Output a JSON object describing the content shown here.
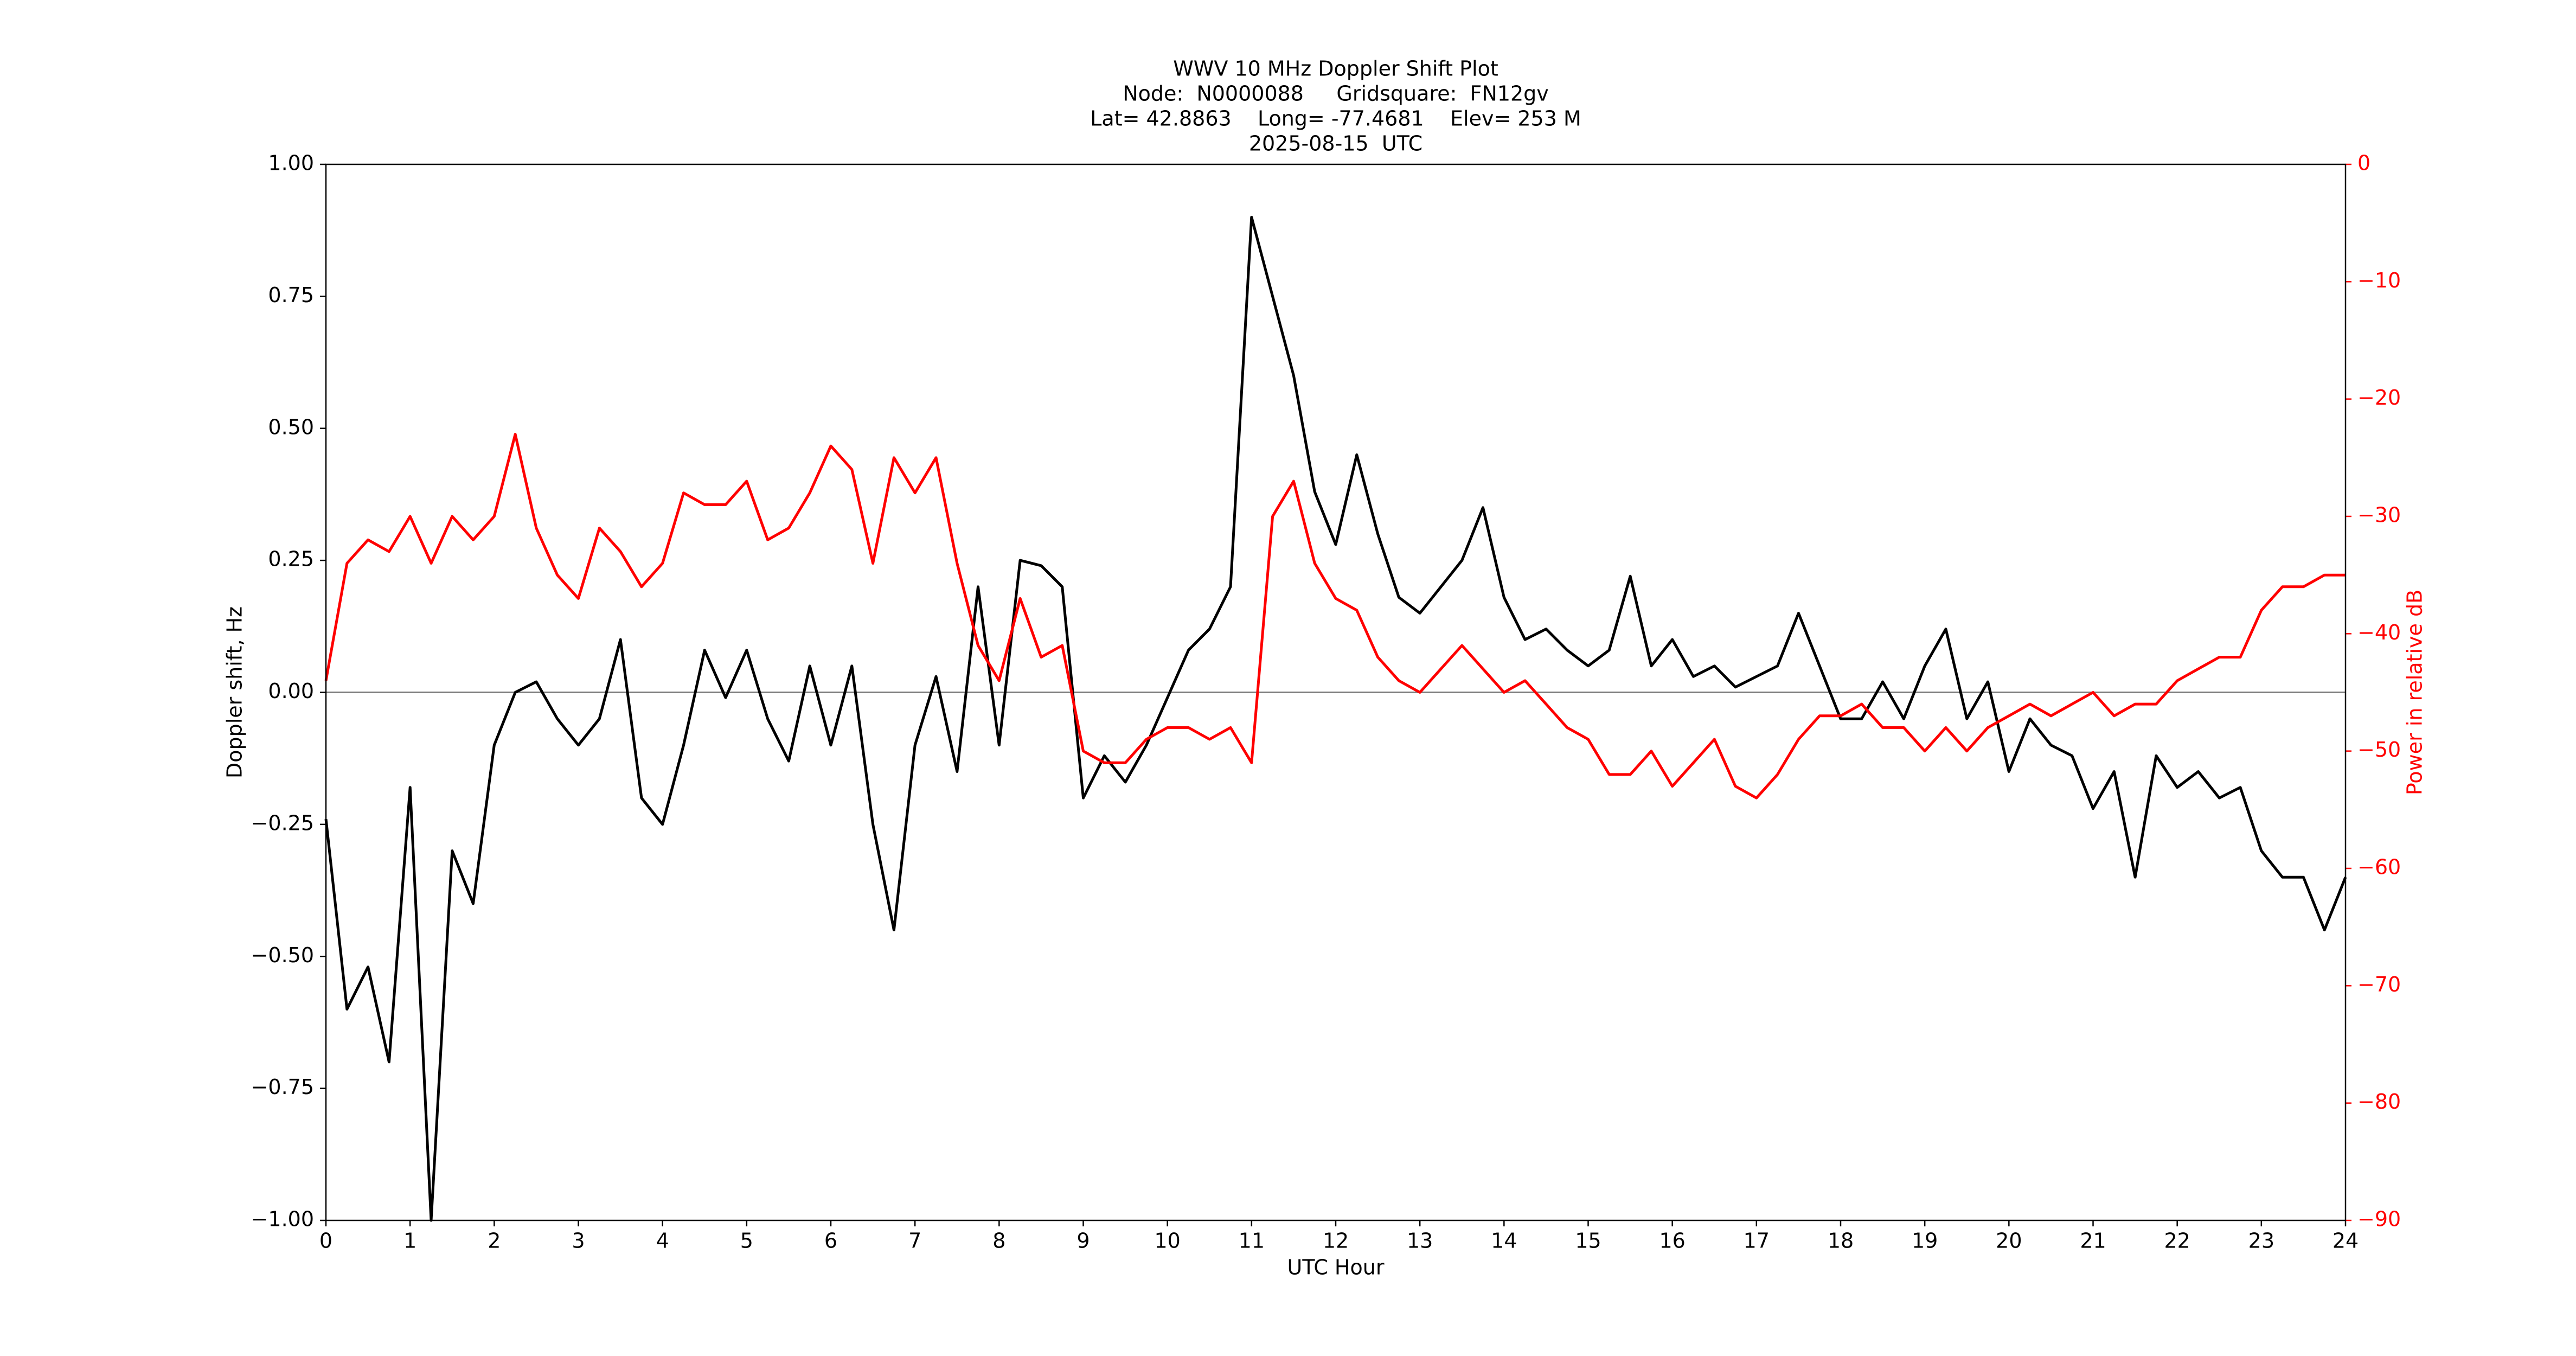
{
  "chart_data": {
    "type": "line",
    "title": [
      "WWV 10 MHz Doppler Shift Plot",
      "Node:  N0000088     Gridsquare:  FN12gv",
      "Lat= 42.8863    Long= -77.4681    Elev= 253 M",
      "2025-08-15  UTC"
    ],
    "xlabel": "UTC Hour",
    "ylabel": "Doppler shift, Hz",
    "y2label": "Power in relative dB",
    "xlim": [
      0,
      24
    ],
    "xticks": [
      0,
      1,
      2,
      3,
      4,
      5,
      6,
      7,
      8,
      9,
      10,
      11,
      12,
      13,
      14,
      15,
      16,
      17,
      18,
      19,
      20,
      21,
      22,
      23,
      24
    ],
    "ylim": [
      -1,
      1
    ],
    "yticks": [
      {
        "value": -1,
        "label": "−1.00"
      },
      {
        "value": -0.75,
        "label": "−0.75"
      },
      {
        "value": -0.5,
        "label": "−0.50"
      },
      {
        "value": -0.25,
        "label": "−0.25"
      },
      {
        "value": 0,
        "label": "0.00"
      },
      {
        "value": 0.25,
        "label": "0.25"
      },
      {
        "value": 0.5,
        "label": "0.50"
      },
      {
        "value": 0.75,
        "label": "0.75"
      },
      {
        "value": 1,
        "label": "1.00"
      }
    ],
    "y2lim": [
      -90,
      0
    ],
    "y2ticks": [
      {
        "value": -90,
        "label": "−90"
      },
      {
        "value": -80,
        "label": "−80"
      },
      {
        "value": -70,
        "label": "−70"
      },
      {
        "value": -60,
        "label": "−60"
      },
      {
        "value": -50,
        "label": "−50"
      },
      {
        "value": -40,
        "label": "−40"
      },
      {
        "value": -30,
        "label": "−30"
      },
      {
        "value": -20,
        "label": "−20"
      },
      {
        "value": -10,
        "label": "−10"
      },
      0
    ],
    "zero_line": true,
    "x": [
      0,
      0.25,
      0.5,
      0.75,
      1,
      1.25,
      1.5,
      1.75,
      2,
      2.25,
      2.5,
      2.75,
      3,
      3.25,
      3.5,
      3.75,
      4,
      4.25,
      4.5,
      4.75,
      5,
      5.25,
      5.5,
      5.75,
      6,
      6.25,
      6.5,
      6.75,
      7,
      7.25,
      7.5,
      7.75,
      8,
      8.25,
      8.5,
      8.75,
      9,
      9.25,
      9.5,
      9.75,
      10,
      10.25,
      10.5,
      10.75,
      11,
      11.25,
      11.5,
      11.75,
      12,
      12.25,
      12.5,
      12.75,
      13,
      13.25,
      13.5,
      13.75,
      14,
      14.25,
      14.5,
      14.75,
      15,
      15.25,
      15.5,
      15.75,
      16,
      16.25,
      16.5,
      16.75,
      17,
      17.25,
      17.5,
      17.75,
      18,
      18.25,
      18.5,
      18.75,
      19,
      19.25,
      19.5,
      19.75,
      20,
      20.25,
      20.5,
      20.75,
      21,
      21.25,
      21.5,
      21.75,
      22,
      22.25,
      22.5,
      22.75,
      23,
      23.25,
      23.5,
      23.75,
      24
    ],
    "series": [
      {
        "color": "#000000",
        "values": [
          -0.24,
          -0.6,
          -0.52,
          -0.7,
          -0.18,
          -1,
          -0.3,
          -0.4,
          -0.1,
          0,
          0.02,
          -0.05,
          -0.1,
          -0.05,
          0.1,
          -0.2,
          -0.25,
          -0.1,
          0.08,
          -0.01,
          0.08,
          -0.05,
          -0.13,
          0.05,
          -0.1,
          0.05,
          -0.25,
          -0.45,
          -0.1,
          0.03,
          -0.15,
          0.2,
          -0.1,
          0.25,
          0.24,
          0.2,
          -0.2,
          -0.12,
          -0.17,
          -0.1,
          -0.01,
          0.08,
          0.12,
          0.2,
          0.9,
          0.75,
          0.6,
          0.38,
          0.28,
          0.45,
          0.3,
          0.18,
          0.15,
          0.2,
          0.25,
          0.35,
          0.18,
          0.1,
          0.12,
          0.08,
          0.05,
          0.08,
          0.22,
          0.05,
          0.1,
          0.03,
          0.05,
          0.01,
          0.03,
          0.05,
          0.15,
          0.05,
          -0.05,
          -0.05,
          0.02,
          -0.05,
          0.05,
          0.12,
          -0.05,
          0.02,
          -0.15,
          -0.05,
          -0.1,
          -0.12,
          -0.22,
          -0.15,
          -0.35,
          -0.12,
          -0.18,
          -0.15,
          -0.2,
          -0.18,
          -0.3,
          -0.35,
          -0.35,
          -0.45,
          -0.35
        ]
      },
      {
        "color": "#ff0000",
        "axis": "y2",
        "values": [
          -44,
          -34,
          -32,
          -33,
          -30,
          -34,
          -30,
          -32,
          -30,
          -23,
          -31,
          -35,
          -37,
          -31,
          -33,
          -36,
          -34,
          -28,
          -29,
          -29,
          -27,
          -32,
          -31,
          -28,
          -24,
          -26,
          -34,
          -25,
          -28,
          -25,
          -34,
          -41,
          -44,
          -37,
          -42,
          -41,
          -50,
          -51,
          -51,
          -49,
          -48,
          -48,
          -49,
          -48,
          -51,
          -30,
          -27,
          -34,
          -37,
          -38,
          -42,
          -44,
          -45,
          -43,
          -41,
          -43,
          -45,
          -44,
          -46,
          -48,
          -49,
          -52,
          -52,
          -50,
          -53,
          -51,
          -49,
          -53,
          -54,
          -52,
          -49,
          -47,
          -47,
          -46,
          -48,
          -48,
          -50,
          -48,
          -50,
          -48,
          -47,
          -46,
          -47,
          -46,
          -45,
          -47,
          -46,
          -46,
          -44,
          -43,
          -42,
          -42,
          -38,
          -36,
          -36,
          -35,
          -35
        ]
      }
    ]
  }
}
